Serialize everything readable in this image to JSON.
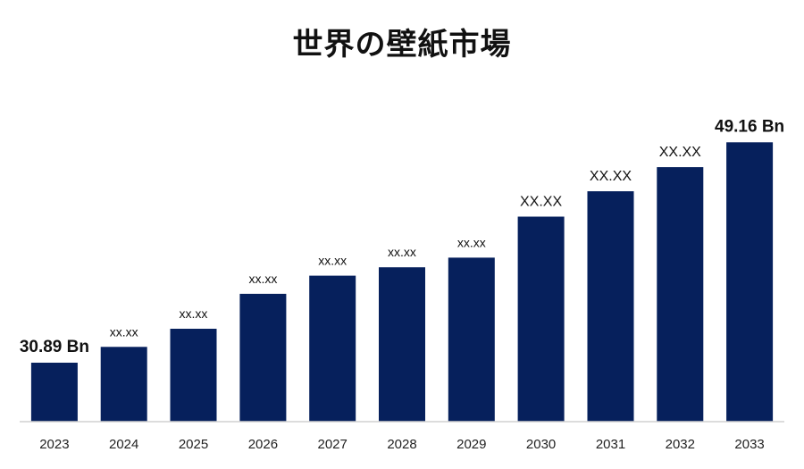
{
  "chart_data": {
    "type": "bar",
    "title": "世界の壁紙市場",
    "xlabel": "",
    "ylabel": "",
    "categories": [
      "2023",
      "2024",
      "2025",
      "2026",
      "2027",
      "2028",
      "2029",
      "2030",
      "2031",
      "2032",
      "2033"
    ],
    "values": [
      30.89,
      32.2,
      33.7,
      36.6,
      38.1,
      38.8,
      39.6,
      43.0,
      45.1,
      47.1,
      49.16
    ],
    "data_labels": [
      "30.89 Bn",
      "xx.xx",
      "xx.xx",
      "xx.xx",
      "xx.xx",
      "xx.xx",
      "xx.xx",
      "XX.XX",
      "XX.XX",
      "XX.XX",
      "49.16 Bn"
    ],
    "ylim": [
      26,
      50
    ],
    "bar_color": "#06205c",
    "grid": false,
    "legend": "none"
  }
}
